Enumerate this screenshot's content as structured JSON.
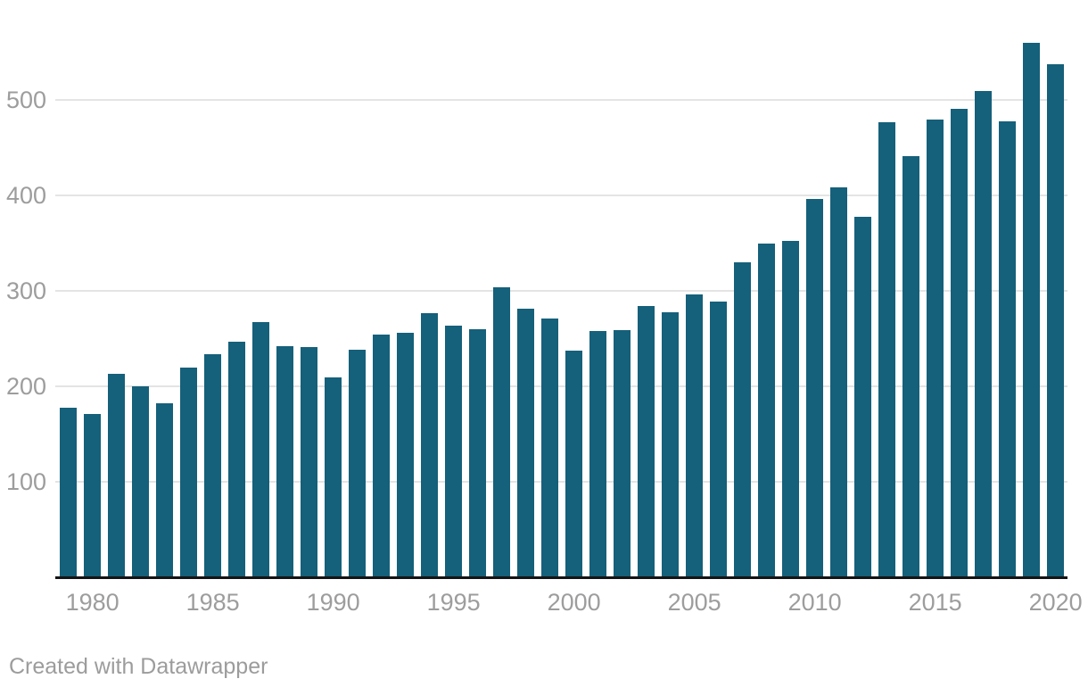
{
  "chart_data": {
    "type": "bar",
    "title": "",
    "xlabel": "",
    "ylabel": "",
    "x": [
      1979,
      1980,
      1981,
      1982,
      1983,
      1984,
      1985,
      1986,
      1987,
      1988,
      1989,
      1990,
      1991,
      1992,
      1993,
      1994,
      1995,
      1996,
      1997,
      1998,
      1999,
      2000,
      2001,
      2002,
      2003,
      2004,
      2005,
      2006,
      2007,
      2008,
      2009,
      2010,
      2011,
      2012,
      2013,
      2014,
      2015,
      2016,
      2017,
      2018,
      2019,
      2020
    ],
    "values": [
      178,
      171,
      213,
      200,
      182,
      220,
      234,
      247,
      267,
      242,
      241,
      209,
      238,
      254,
      256,
      277,
      264,
      260,
      304,
      281,
      271,
      237,
      258,
      259,
      284,
      278,
      296,
      289,
      330,
      350,
      352,
      396,
      408,
      378,
      477,
      441,
      479,
      491,
      509,
      478,
      560,
      537
    ],
    "xtick_labels": [
      "1980",
      "1985",
      "1990",
      "1995",
      "2000",
      "2005",
      "2010",
      "2015",
      "2020"
    ],
    "ytick_labels": [
      "100",
      "200",
      "300",
      "400",
      "500"
    ],
    "ylim": [
      0,
      605
    ],
    "grid": true,
    "legend": "none",
    "colors": {
      "bar": "#15607a",
      "gridline": "#e4e4e4",
      "tick_label": "#9d9d9d",
      "axis_line": "#141416"
    }
  },
  "footer": {
    "attribution": "Created with Datawrapper"
  }
}
